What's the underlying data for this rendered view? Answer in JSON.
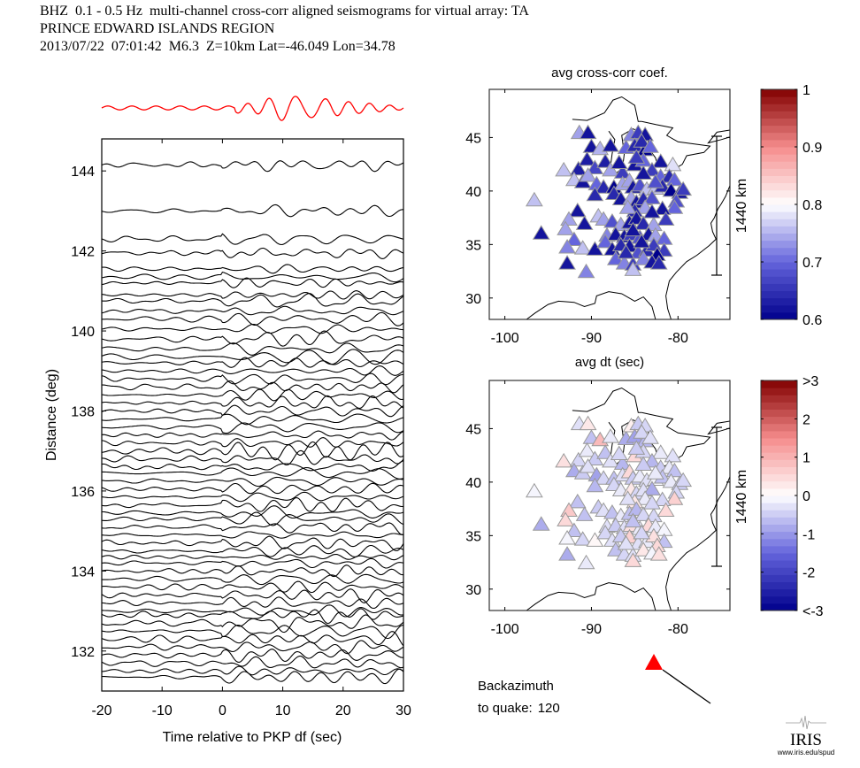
{
  "header": {
    "line1": "BHZ  0.1 - 0.5 Hz  multi-channel cross-corr aligned seismograms for virtual array: TA",
    "line2": "PRINCE EDWARD ISLANDS REGION",
    "line3": "2013/07/22  07:01:42  M6.3  Z=10km Lat=-46.049 Lon=34.78"
  },
  "colors": {
    "stack_trace": "#ff0000",
    "trace": "#000000",
    "backazimuth_marker": "#ff0000"
  },
  "chart_data": [
    {
      "type": "line",
      "name": "seismogram-section",
      "xlabel": "Time relative to PKP df (sec)",
      "ylabel": "Distance (deg)",
      "xlim": [
        -20,
        30
      ],
      "ylim": [
        131,
        144.8
      ],
      "xticks": [
        -20,
        -10,
        0,
        10,
        20,
        30
      ],
      "yticks": [
        132,
        134,
        136,
        138,
        140,
        142,
        144
      ],
      "trace_distances": [
        144.15,
        143.0,
        142.3,
        141.95,
        141.55,
        141.35,
        141.2,
        140.9,
        140.75,
        140.5,
        140.3,
        140.05,
        139.8,
        139.55,
        139.35,
        139.2,
        139.0,
        138.8,
        138.6,
        138.4,
        138.2,
        138.0,
        137.8,
        137.6,
        137.4,
        137.2,
        137.0,
        136.8,
        136.6,
        136.45,
        136.25,
        136.05,
        135.85,
        135.65,
        135.45,
        135.3,
        135.1,
        134.9,
        134.7,
        134.5,
        134.35,
        134.2,
        134.0,
        133.8,
        133.6,
        133.4,
        133.2,
        133.0,
        132.9,
        132.7,
        132.5,
        132.3,
        132.1,
        131.9,
        131.7,
        131.5,
        131.35
      ],
      "stack": {
        "label": "stack",
        "color": "#ff0000"
      }
    },
    {
      "type": "scatter",
      "name": "map-cc",
      "title": "avg cross-corr coef.",
      "xlim": [
        -101.8,
        -74
      ],
      "ylim": [
        28,
        49.5
      ],
      "xticks": [
        -100,
        -90,
        -80
      ],
      "yticks": [
        30,
        35,
        40,
        45
      ],
      "scale_bar_label": "1440 km",
      "colorbar": {
        "min": 0.6,
        "max": 1.0,
        "tick_labels": [
          "1",
          "0.9",
          "0.8",
          "0.7",
          "0.6"
        ],
        "tick_values": [
          1.0,
          0.9,
          0.8,
          0.7,
          0.6
        ]
      }
    },
    {
      "type": "scatter",
      "name": "map-dt",
      "title": "avg dt (sec)",
      "xlim": [
        -101.8,
        -74
      ],
      "ylim": [
        28,
        49.5
      ],
      "xticks": [
        -100,
        -90,
        -80
      ],
      "yticks": [
        30,
        35,
        40,
        45
      ],
      "scale_bar_label": "1440 km",
      "colorbar": {
        "min": -3,
        "max": 3,
        "tick_labels": [
          ">3",
          "2",
          "1",
          "0",
          "-1",
          "-2",
          "<-3"
        ],
        "tick_values": [
          3,
          2,
          1,
          0,
          -1,
          -2,
          -3
        ]
      }
    }
  ],
  "stations": [
    [
      -91.4,
      45.4,
      0.74,
      -0.3
    ],
    [
      -90.4,
      45.4,
      0.62,
      0.3
    ],
    [
      -90.0,
      44.1,
      0.62,
      -0.6
    ],
    [
      -89.0,
      43.9,
      0.75,
      0.9
    ],
    [
      -87.8,
      44.2,
      0.62,
      -0.2
    ],
    [
      -86.0,
      44.0,
      0.7,
      -0.8
    ],
    [
      -85.4,
      45.2,
      0.72,
      0.2
    ],
    [
      -84.6,
      45.4,
      0.66,
      -0.5
    ],
    [
      -83.8,
      45.2,
      0.62,
      -0.4
    ],
    [
      -85.0,
      44.2,
      0.64,
      -0.9
    ],
    [
      -83.8,
      43.8,
      0.6,
      -0.7
    ],
    [
      -82.0,
      42.7,
      0.62,
      -0.2
    ],
    [
      -80.6,
      42.4,
      0.78,
      -0.3
    ],
    [
      -93.2,
      41.9,
      0.76,
      0.4
    ],
    [
      -91.5,
      42.0,
      0.63,
      -0.4
    ],
    [
      -90.5,
      42.9,
      0.63,
      -0.2
    ],
    [
      -89.6,
      42.1,
      0.67,
      -0.5
    ],
    [
      -88.4,
      42.7,
      0.63,
      -0.6
    ],
    [
      -87.8,
      41.9,
      0.74,
      -0.3
    ],
    [
      -86.4,
      41.7,
      0.66,
      -0.7
    ],
    [
      -85.0,
      42.4,
      0.62,
      0.5
    ],
    [
      -84.0,
      42.8,
      0.7,
      -0.4
    ],
    [
      -83.0,
      41.9,
      0.66,
      -0.7
    ],
    [
      -82.0,
      41.3,
      0.7,
      -0.5
    ],
    [
      -81.0,
      41.3,
      0.64,
      -0.2
    ],
    [
      -80.4,
      41.0,
      0.7,
      -0.6
    ],
    [
      -92.0,
      41.0,
      0.76,
      -0.8
    ],
    [
      -91.0,
      40.8,
      0.62,
      -0.5
    ],
    [
      -90.4,
      41.4,
      0.74,
      -0.3
    ],
    [
      -89.4,
      40.6,
      0.7,
      -0.9
    ],
    [
      -88.6,
      40.3,
      0.64,
      -0.4
    ],
    [
      -87.4,
      40.3,
      0.6,
      -0.6
    ],
    [
      -86.4,
      40.6,
      0.74,
      -0.3
    ],
    [
      -85.6,
      40.9,
      0.74,
      0.5
    ],
    [
      -85.2,
      40.3,
      0.62,
      -0.5
    ],
    [
      -84.4,
      40.5,
      0.68,
      -0.2
    ],
    [
      -83.6,
      40.1,
      0.76,
      -0.3
    ],
    [
      -82.6,
      40.2,
      0.76,
      -0.1
    ],
    [
      -81.8,
      40.4,
      0.64,
      -0.6
    ],
    [
      -80.8,
      40.0,
      0.6,
      -0.2
    ],
    [
      -79.8,
      39.8,
      0.62,
      -0.5
    ],
    [
      -79.4,
      40.1,
      0.66,
      -0.4
    ],
    [
      -96.6,
      39.1,
      0.76,
      -0.1
    ],
    [
      -89.6,
      39.6,
      0.64,
      -0.7
    ],
    [
      -87.4,
      39.7,
      0.64,
      -0.4
    ],
    [
      -86.6,
      39.2,
      0.62,
      -0.2
    ],
    [
      -85.4,
      39.3,
      0.74,
      0.3
    ],
    [
      -84.8,
      38.9,
      0.62,
      -0.4
    ],
    [
      -84.0,
      39.2,
      0.64,
      -0.3
    ],
    [
      -83.0,
      39.3,
      0.68,
      -0.8
    ],
    [
      -80.2,
      39.0,
      0.68,
      -0.4
    ],
    [
      -80.4,
      38.4,
      0.7,
      0.6
    ],
    [
      -81.8,
      38.3,
      0.62,
      -0.4
    ],
    [
      -83.8,
      38.4,
      0.74,
      -0.2
    ],
    [
      -85.0,
      38.1,
      0.64,
      0.3
    ],
    [
      -85.8,
      38.4,
      0.74,
      -0.3
    ],
    [
      -91.6,
      38.1,
      0.62,
      -0.6
    ],
    [
      -92.6,
      37.3,
      0.74,
      0.7
    ],
    [
      -90.8,
      36.9,
      0.62,
      -0.6
    ],
    [
      -89.2,
      37.6,
      0.76,
      -0.5
    ],
    [
      -88.6,
      37.3,
      0.74,
      -0.3
    ],
    [
      -87.6,
      37.1,
      0.68,
      -0.6
    ],
    [
      -86.6,
      36.8,
      0.74,
      -0.2
    ],
    [
      -85.6,
      37.0,
      0.62,
      -0.6
    ],
    [
      -84.8,
      37.4,
      0.62,
      -0.7
    ],
    [
      -84.0,
      36.9,
      0.64,
      -0.4
    ],
    [
      -82.8,
      36.8,
      0.74,
      -0.4
    ],
    [
      -81.4,
      37.3,
      0.66,
      0.5
    ],
    [
      -93.0,
      36.4,
      0.74,
      0.5
    ],
    [
      -95.8,
      36.0,
      0.62,
      -0.8
    ],
    [
      -92.0,
      35.4,
      0.7,
      -0.6
    ],
    [
      -88.2,
      35.8,
      0.72,
      -0.3
    ],
    [
      -87.2,
      35.9,
      0.62,
      -0.5
    ],
    [
      -86.2,
      35.7,
      0.62,
      -0.3
    ],
    [
      -85.4,
      35.9,
      0.66,
      0.4
    ],
    [
      -84.4,
      35.6,
      0.68,
      -0.2
    ],
    [
      -83.4,
      35.9,
      0.62,
      0.5
    ],
    [
      -82.6,
      35.8,
      0.74,
      -0.2
    ],
    [
      -81.6,
      35.5,
      0.7,
      -0.1
    ],
    [
      -92.8,
      34.7,
      0.72,
      -0.1
    ],
    [
      -91.0,
      34.6,
      0.76,
      -0.4
    ],
    [
      -89.6,
      34.5,
      0.62,
      0.1
    ],
    [
      -88.4,
      35.2,
      0.7,
      -0.4
    ],
    [
      -87.6,
      34.5,
      0.62,
      -0.3
    ],
    [
      -86.6,
      34.9,
      0.64,
      -0.5
    ],
    [
      -85.6,
      34.8,
      0.62,
      0.6
    ],
    [
      -84.6,
      34.2,
      0.68,
      -0.3
    ],
    [
      -83.6,
      34.4,
      0.64,
      -0.2
    ],
    [
      -82.8,
      34.9,
      0.66,
      0.4
    ],
    [
      -81.6,
      34.4,
      0.66,
      -0.6
    ],
    [
      -82.4,
      34.0,
      0.6,
      0.5
    ],
    [
      -92.8,
      33.2,
      0.62,
      -0.8
    ],
    [
      -87.2,
      33.6,
      0.7,
      -0.6
    ],
    [
      -86.2,
      33.2,
      0.72,
      -0.4
    ],
    [
      -85.2,
      33.1,
      0.66,
      -0.3
    ],
    [
      -84.0,
      33.6,
      0.72,
      0.3
    ],
    [
      -83.0,
      33.3,
      0.62,
      -0.1
    ],
    [
      -82.2,
      33.2,
      0.64,
      0.4
    ],
    [
      -90.6,
      32.4,
      0.72,
      -0.2
    ],
    [
      -85.2,
      32.6,
      0.76,
      0.5
    ],
    [
      -86.8,
      42.6,
      0.62,
      -0.4
    ],
    [
      -84.8,
      43.1,
      0.66,
      -0.5
    ],
    [
      -84.0,
      41.6,
      0.62,
      -0.5
    ],
    [
      -82.6,
      40.8,
      0.68,
      -0.2
    ],
    [
      -83.0,
      38.0,
      0.62,
      -0.4
    ],
    [
      -85.2,
      36.3,
      0.62,
      -0.6
    ],
    [
      -84.2,
      35.2,
      0.62,
      -0.4
    ],
    [
      -86.0,
      34.2,
      0.64,
      -0.3
    ],
    [
      -84.2,
      44.6,
      0.64,
      -0.4
    ],
    [
      -83.2,
      44.1,
      0.7,
      -0.3
    ]
  ],
  "backazimuth": {
    "label_line1": "Backazimuth",
    "label_line2": "to quake:",
    "value": "120"
  },
  "logo": {
    "text": "IRIS",
    "url_text": "www.iris.edu/spud"
  }
}
